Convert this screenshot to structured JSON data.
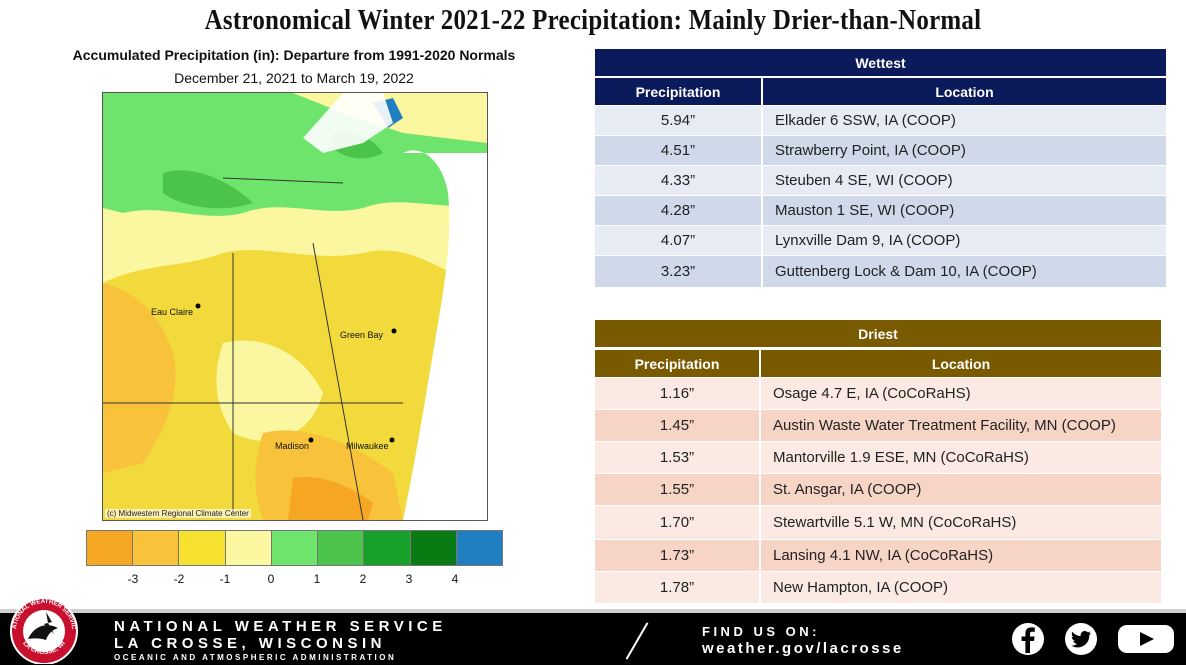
{
  "title": "Astronomical Winter 2021-22 Precipitation:  Mainly Drier-than-Normal",
  "map": {
    "title": "Accumulated Precipitation (in): Departure from 1991-2020 Normals",
    "subtitle": "December 21, 2021 to March 19, 2022",
    "cities": [
      "Eau Claire",
      "Green Bay",
      "Madison",
      "Milwaukee"
    ],
    "credit": "(c) Midwestern Regional Climate Center",
    "legend_colors": [
      "#f5a623",
      "#f8c33a",
      "#f5e12e",
      "#fbf7a0",
      "#6ee46c",
      "#4cc34a",
      "#17a02a",
      "#0a7a12",
      "#1f7fc1"
    ],
    "legend_ticks": [
      "-3",
      "-2",
      "-1",
      "0",
      "1",
      "2",
      "3",
      "4"
    ]
  },
  "wettest": {
    "title": "Wettest",
    "col_precip": "Precipitation",
    "col_location": "Location",
    "rows": [
      {
        "precip": "5.94”",
        "location": "Elkader 6 SSW, IA (COOP)"
      },
      {
        "precip": "4.51”",
        "location": "Strawberry Point, IA (COOP)"
      },
      {
        "precip": "4.33”",
        "location": "Steuben 4 SE, WI (COOP)"
      },
      {
        "precip": "4.28”",
        "location": "Mauston 1 SE, WI (COOP)"
      },
      {
        "precip": "4.07”",
        "location": "Lynxville Dam 9, IA (COOP)"
      },
      {
        "precip": "3.23”",
        "location": "Guttenberg Lock & Dam 10, IA (COOP)"
      }
    ]
  },
  "driest": {
    "title": "Driest",
    "col_precip": "Precipitation",
    "col_location": "Location",
    "rows": [
      {
        "precip": "1.16”",
        "location": "Osage 4.7 E, IA (CoCoRaHS)"
      },
      {
        "precip": "1.45”",
        "location": "Austin Waste Water Treatment  Facility, MN (COOP)"
      },
      {
        "precip": "1.53”",
        "location": "Mantorville 1.9 ESE, MN (CoCoRaHS)"
      },
      {
        "precip": "1.55”",
        "location": "St. Ansgar, IA (COOP)"
      },
      {
        "precip": "1.70”",
        "location": "Stewartville 5.1 W, MN (CoCoRaHS)"
      },
      {
        "precip": "1.73”",
        "location": "Lansing 4.1 NW, IA (CoCoRaHS)"
      },
      {
        "precip": "1.78”",
        "location": "New Hampton, IA (COOP)"
      }
    ]
  },
  "footer": {
    "line1": "NATIONAL WEATHER SERVICE",
    "line2": "LA CROSSE, WISCONSIN",
    "line3": "OCEANIC AND ATMOSPHERIC ADMINISTRATION",
    "find_label": "FIND US ON:",
    "url": "weather.gov/lacrosse",
    "logo_text_top": "NATIONAL WEATHER SERVICE",
    "logo_text_bottom": "LA CROSSE, WI",
    "social_icons": [
      "facebook-icon",
      "twitter-icon",
      "youtube-icon"
    ]
  }
}
